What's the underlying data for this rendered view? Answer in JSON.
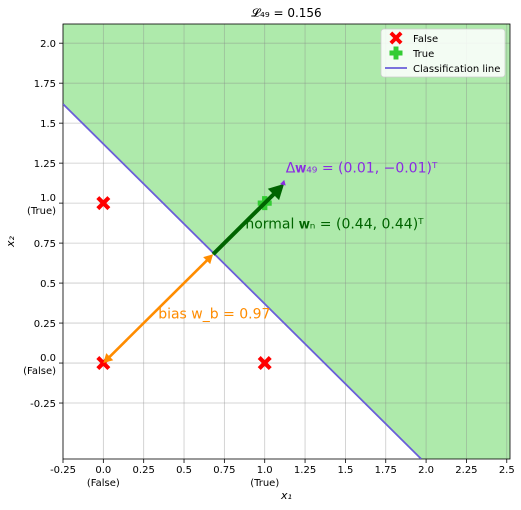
{
  "chart_data": {
    "type": "scatter",
    "title": "𝓛₄₉ = 0.156",
    "xlabel": "x₁",
    "ylabel": "x₂",
    "xlim": [
      -0.25,
      2.52
    ],
    "ylim": [
      -0.6,
      2.12
    ],
    "grid": true,
    "legend_placement": "top-right",
    "x_ticks": [
      {
        "value": -0.25,
        "label": "-0.25"
      },
      {
        "value": 0.0,
        "label": "0.0",
        "sublabel": "(False)"
      },
      {
        "value": 0.25,
        "label": "0.25"
      },
      {
        "value": 0.5,
        "label": "0.5"
      },
      {
        "value": 0.75,
        "label": "0.75"
      },
      {
        "value": 1.0,
        "label": "1.0",
        "sublabel": "(True)"
      },
      {
        "value": 1.25,
        "label": "1.25"
      },
      {
        "value": 1.5,
        "label": "1.5"
      },
      {
        "value": 1.75,
        "label": "1.75"
      },
      {
        "value": 2.0,
        "label": "2.0"
      },
      {
        "value": 2.25,
        "label": "2.25"
      },
      {
        "value": 2.5,
        "label": "2.5"
      }
    ],
    "y_ticks": [
      {
        "value": -0.25,
        "label": "-0.25"
      },
      {
        "value": 0.0,
        "label": "0.0",
        "sublabel": "(False)"
      },
      {
        "value": 0.25,
        "label": "0.25"
      },
      {
        "value": 0.5,
        "label": "0.5"
      },
      {
        "value": 0.75,
        "label": "0.75"
      },
      {
        "value": 1.0,
        "label": "1.0",
        "sublabel": "(True)"
      },
      {
        "value": 1.25,
        "label": "1.25"
      },
      {
        "value": 1.5,
        "label": "1.5"
      },
      {
        "value": 1.75,
        "label": "1.75"
      },
      {
        "value": 2.0,
        "label": "2.0"
      }
    ],
    "series": [
      {
        "name": "False",
        "marker": "X",
        "color": "#ff0000",
        "points": [
          [
            0,
            0
          ],
          [
            0,
            1
          ],
          [
            1,
            0
          ]
        ]
      },
      {
        "name": "True",
        "marker": "P",
        "color": "#33cc33",
        "points": [
          [
            1,
            1
          ]
        ]
      }
    ],
    "classification_line": {
      "name": "Classification line",
      "color": "#6a5fd8",
      "x_intercept_sum": 1.37,
      "comment_free_region_color": "#aeeaab"
    },
    "legend": [
      {
        "label": "False",
        "color": "#ff0000",
        "marker": "X"
      },
      {
        "label": "True",
        "color": "#33cc33",
        "marker": "P"
      },
      {
        "label": "Classification line",
        "color": "#6a5fd8",
        "marker": "line"
      }
    ],
    "arrows": [
      {
        "name": "bias",
        "from": [
          0.68,
          0.68
        ],
        "to": [
          0,
          0
        ],
        "color": "#ff8c00",
        "double_headed": true
      },
      {
        "name": "normal",
        "from": [
          0.68,
          0.68
        ],
        "to": [
          1.12,
          1.12
        ],
        "color": "#006400"
      },
      {
        "name": "delta",
        "from": [
          1.12,
          1.12
        ],
        "to": [
          1.13,
          1.11
        ],
        "color": "#8a2be2"
      }
    ],
    "annotations": [
      {
        "name": "delta-w-annotation",
        "text": "Δ𝐰₄₉ = (0.01, −0.01)ᵀ",
        "color": "#8a2be2",
        "at": [
          1.13,
          1.19
        ]
      },
      {
        "name": "normal-annotation",
        "text": "normal 𝐰ₙ = (0.44, 0.44)ᵀ",
        "color": "#006400",
        "at": [
          0.88,
          0.84
        ]
      },
      {
        "name": "bias-annotation",
        "text": "bias w_b = 0.97",
        "color": "#ff8c00",
        "at": [
          0.34,
          0.28
        ]
      }
    ]
  }
}
